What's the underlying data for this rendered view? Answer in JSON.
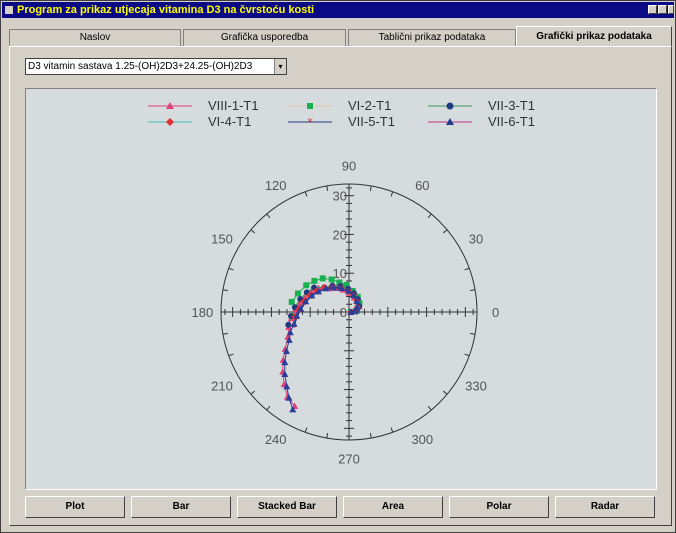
{
  "window": {
    "title": "Program za prikaz utjecaja vitamina D3 na čvrstoću kosti"
  },
  "tabs": [
    {
      "label": "Naslov",
      "active": false
    },
    {
      "label": "Grafička usporedba",
      "active": false
    },
    {
      "label": "Tablični prikaz podataka",
      "active": false
    },
    {
      "label": "Grafički prikaz podataka",
      "active": true
    }
  ],
  "dropdown": {
    "value": "D3 vitamin sastava 1.25-(OH)2D3+24.25-(OH)2D3"
  },
  "buttons": [
    {
      "label": "Plot"
    },
    {
      "label": "Bar"
    },
    {
      "label": "Stacked Bar"
    },
    {
      "label": "Area"
    },
    {
      "label": "Polar"
    },
    {
      "label": "Radar"
    }
  ],
  "chart_data": {
    "type": "polar",
    "radial_ticks": [
      "0",
      "10",
      "20",
      "30"
    ],
    "radial_max": 33,
    "angle_labels": [
      "0",
      "30",
      "60",
      "90",
      "120",
      "150",
      "180",
      "210",
      "240",
      "270",
      "300",
      "330"
    ],
    "legend_placement": "top",
    "series": [
      {
        "name": "VIII-1-T1",
        "color": "#e0407a",
        "marker": "triangle",
        "points": [
          [
            0.5,
            0
          ],
          [
            2,
            10
          ],
          [
            3,
            30
          ],
          [
            3.5,
            50
          ],
          [
            4,
            70
          ],
          [
            5,
            90
          ],
          [
            6,
            105
          ],
          [
            7,
            118
          ],
          [
            8,
            130
          ],
          [
            10,
            142
          ],
          [
            11,
            152
          ],
          [
            12,
            162
          ],
          [
            13,
            170
          ],
          [
            14,
            178
          ],
          [
            15,
            186
          ],
          [
            16,
            194
          ],
          [
            17,
            202
          ],
          [
            19,
            210
          ],
          [
            21,
            216
          ],
          [
            23,
            222
          ],
          [
            25,
            228
          ],
          [
            27,
            234
          ],
          [
            28,
            240
          ]
        ]
      },
      {
        "name": "VI-2-T1",
        "color": "#18b050",
        "marker": "square",
        "points": [
          [
            0.5,
            0
          ],
          [
            2,
            10
          ],
          [
            3.5,
            40
          ],
          [
            4.5,
            60
          ],
          [
            5.5,
            80
          ],
          [
            7,
            95
          ],
          [
            8,
            108
          ],
          [
            9.5,
            118
          ],
          [
            11,
            128
          ],
          [
            12,
            138
          ],
          [
            13,
            148
          ],
          [
            14,
            160
          ],
          [
            15,
            170
          ]
        ]
      },
      {
        "name": "VII-3-T1",
        "color": "#3a9a5a",
        "marker": "circle",
        "points": [
          [
            0.5,
            0
          ],
          [
            2,
            10
          ],
          [
            3,
            30
          ],
          [
            4,
            55
          ],
          [
            5,
            75
          ],
          [
            6,
            92
          ],
          [
            7,
            108
          ],
          [
            8,
            122
          ],
          [
            9,
            135
          ],
          [
            11,
            145
          ],
          [
            12,
            155
          ],
          [
            13,
            165
          ],
          [
            14,
            175
          ],
          [
            15,
            184
          ],
          [
            16,
            192
          ]
        ]
      },
      {
        "name": "VI-4-T1",
        "color": "#e03030",
        "marker": "diamond",
        "points": [
          [
            0.5,
            0
          ],
          [
            1.5,
            10
          ],
          [
            2.5,
            30
          ],
          [
            3.5,
            55
          ],
          [
            4.5,
            75
          ],
          [
            5.5,
            92
          ],
          [
            6.5,
            108
          ],
          [
            7.5,
            122
          ],
          [
            9,
            135
          ],
          [
            10,
            147
          ],
          [
            11,
            157
          ],
          [
            12,
            167
          ],
          [
            13,
            177
          ],
          [
            14,
            185
          ]
        ]
      },
      {
        "name": "VII-5-T1",
        "color": "#203a80",
        "marker": "star",
        "points": [
          [
            0.5,
            0
          ],
          [
            1.5,
            12
          ],
          [
            2.5,
            32
          ],
          [
            3.5,
            57
          ],
          [
            4.5,
            77
          ],
          [
            5.5,
            94
          ],
          [
            6.5,
            110
          ],
          [
            7.5,
            124
          ],
          [
            8.5,
            136
          ],
          [
            9.5,
            148
          ],
          [
            10.5,
            158
          ],
          [
            11.5,
            168
          ],
          [
            12.5,
            178
          ],
          [
            13.5,
            186
          ],
          [
            14.5,
            194
          ]
        ]
      },
      {
        "name": "VII-6-T1",
        "color": "#203a90",
        "marker": "triangle",
        "points": [
          [
            0.5,
            0
          ],
          [
            1.5,
            12
          ],
          [
            2.5,
            32
          ],
          [
            3.5,
            55
          ],
          [
            4.5,
            75
          ],
          [
            5.5,
            92
          ],
          [
            6.5,
            108
          ],
          [
            7.5,
            122
          ],
          [
            8.5,
            134
          ],
          [
            9.5,
            146
          ],
          [
            10.5,
            156
          ],
          [
            11.5,
            166
          ],
          [
            12.5,
            176
          ],
          [
            13.5,
            184
          ],
          [
            14.5,
            192
          ],
          [
            16,
            199
          ],
          [
            17,
            205
          ],
          [
            19,
            212
          ],
          [
            21,
            218
          ],
          [
            23,
            224
          ],
          [
            25,
            230
          ],
          [
            27,
            235
          ],
          [
            29,
            240
          ]
        ]
      }
    ]
  }
}
